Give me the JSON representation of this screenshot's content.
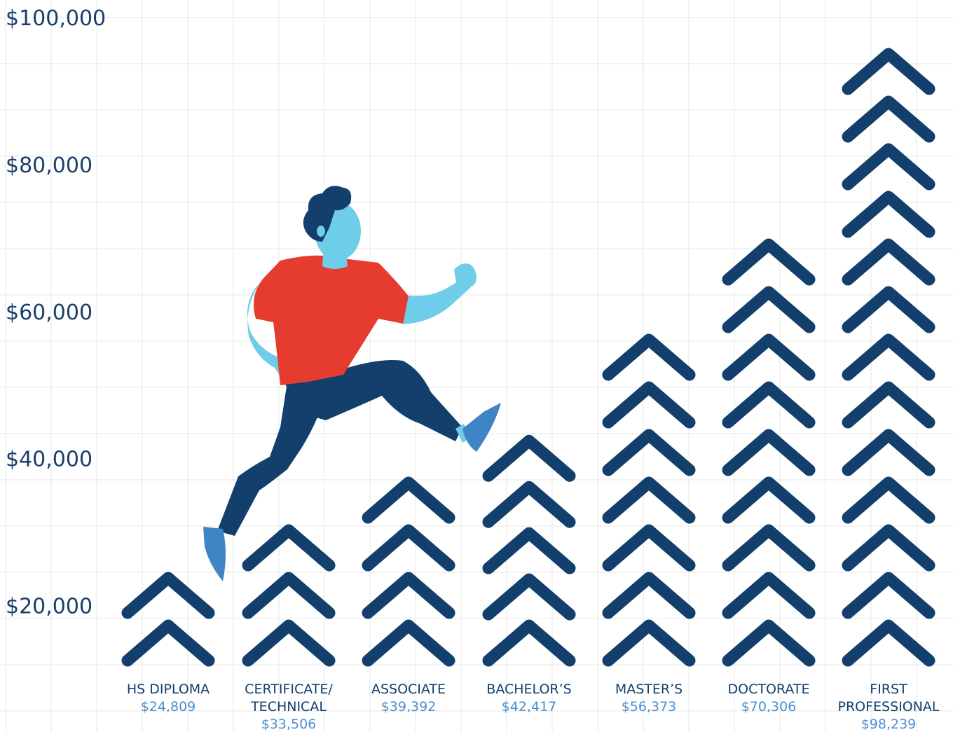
{
  "chart_data": {
    "type": "bar",
    "title": "",
    "xlabel": "",
    "ylabel": "",
    "ylim": [
      10000,
      102000
    ],
    "yticks": [
      20000,
      40000,
      60000,
      80000,
      100000
    ],
    "ytick_labels": [
      "$20,000",
      "$40,000",
      "$60,000",
      "$80,000",
      "$100,000"
    ],
    "categories": [
      [
        "HS DIPLOMA"
      ],
      [
        "CERTIFICATE/",
        "TECHNICAL"
      ],
      [
        "ASSOCIATE"
      ],
      [
        "BACHELOR’S"
      ],
      [
        "MASTER’S"
      ],
      [
        "DOCTORATE"
      ],
      [
        "FIRST",
        "PROFESSIONAL"
      ]
    ],
    "value_labels": [
      "$24,809",
      "$33,506",
      "$39,392",
      "$42,417",
      "$56,373",
      "$70,306",
      "$98,239"
    ],
    "values": [
      24809,
      33506,
      39392,
      42417,
      56373,
      70306,
      98239
    ],
    "chevron_counts": [
      2,
      3,
      4,
      5,
      7,
      9,
      13
    ],
    "grid": true,
    "colors": {
      "chevron": "#123f6c",
      "value_text": "#4a8fd0",
      "axis_text": "#1b3f6b",
      "grid": "#e7e7e7",
      "shirt": "#e63c2f",
      "skin": "#6ecde8",
      "pants": "#123f6c",
      "shoe": "#3f85c6"
    },
    "illustration": "running-man-icon"
  }
}
